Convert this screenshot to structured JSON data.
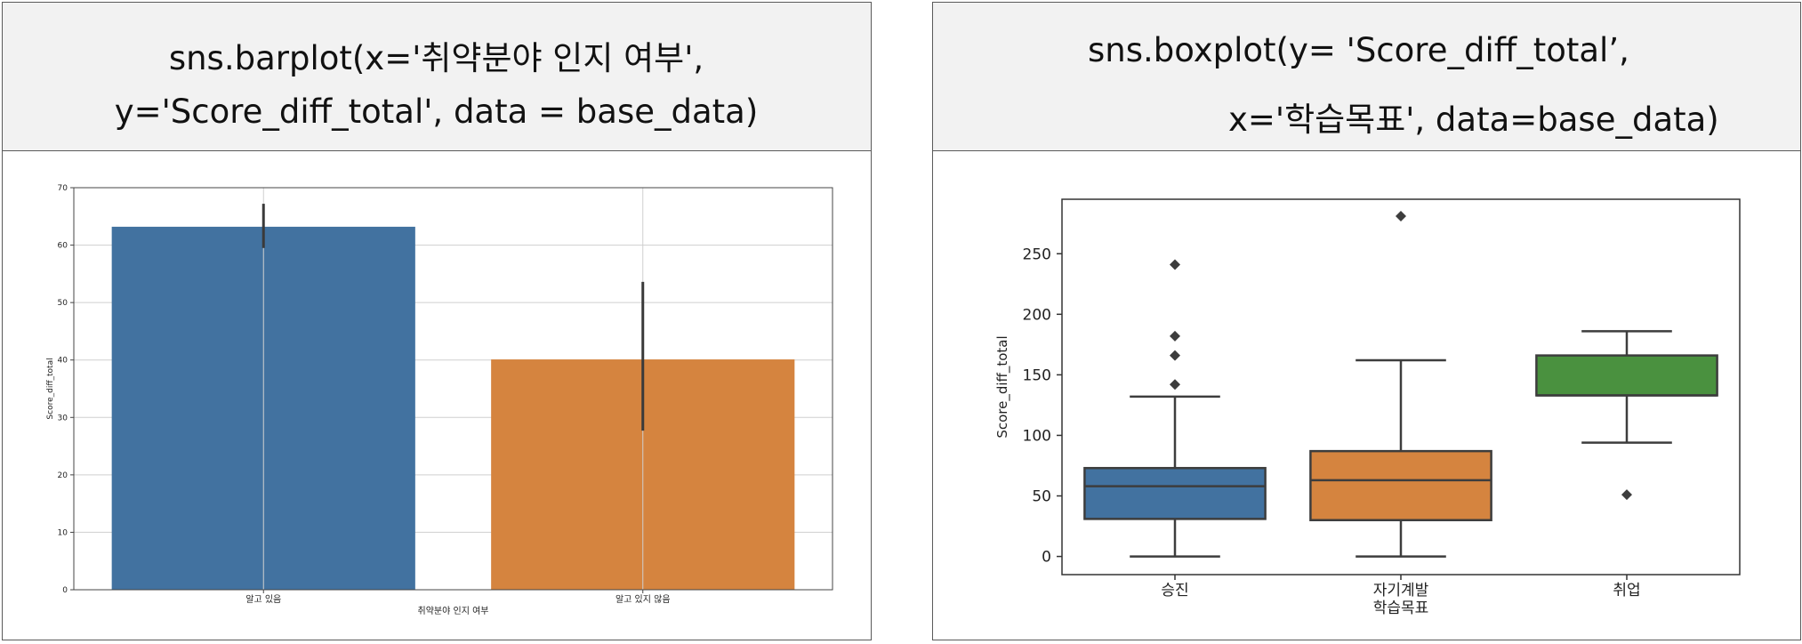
{
  "panels": {
    "left": {
      "code_lines": [
        "sns.barplot(x='취약분야 인지 여부',",
        "y='Score_diff_total', data = base_data)"
      ]
    },
    "right": {
      "code_lines": [
        "sns.boxplot(y= 'Score_diff_total’,",
        "x='학습목표', data=base_data)"
      ]
    }
  },
  "chart_data": [
    {
      "type": "bar",
      "categories": [
        "알고 있음",
        "알고 있지 않음"
      ],
      "values": [
        63.2,
        40.1
      ],
      "error_bars": [
        [
          59.5,
          67.2
        ],
        [
          27.7,
          53.6
        ]
      ],
      "colors": [
        "#4272a0",
        "#d5843f"
      ],
      "xlabel": "취약분야 인지 여부",
      "ylabel": "Score_diff_total",
      "ylim": [
        0,
        70
      ],
      "yticks": [
        0,
        10,
        20,
        30,
        40,
        50,
        60,
        70
      ],
      "grid": true
    },
    {
      "type": "box",
      "categories": [
        "승진",
        "자기계발",
        "취업"
      ],
      "boxes": [
        {
          "min": 0,
          "q1": 31,
          "median": 58,
          "q3": 73,
          "max": 132,
          "outliers": [
            142,
            166,
            182,
            241
          ]
        },
        {
          "min": 0,
          "q1": 30,
          "median": 63,
          "q3": 87,
          "max": 162,
          "outliers": [
            281
          ]
        },
        {
          "min": 94,
          "q1": 133,
          "median": 133,
          "q3": 166,
          "max": 186,
          "outliers": [
            51
          ]
        }
      ],
      "colors": [
        "#4272a0",
        "#d5843f",
        "#4a913f"
      ],
      "xlabel": "학습목표",
      "ylabel": "Score_diff_total",
      "ylim": [
        -15,
        295
      ],
      "yticks": [
        0,
        50,
        100,
        150,
        200,
        250
      ],
      "grid": false
    }
  ]
}
